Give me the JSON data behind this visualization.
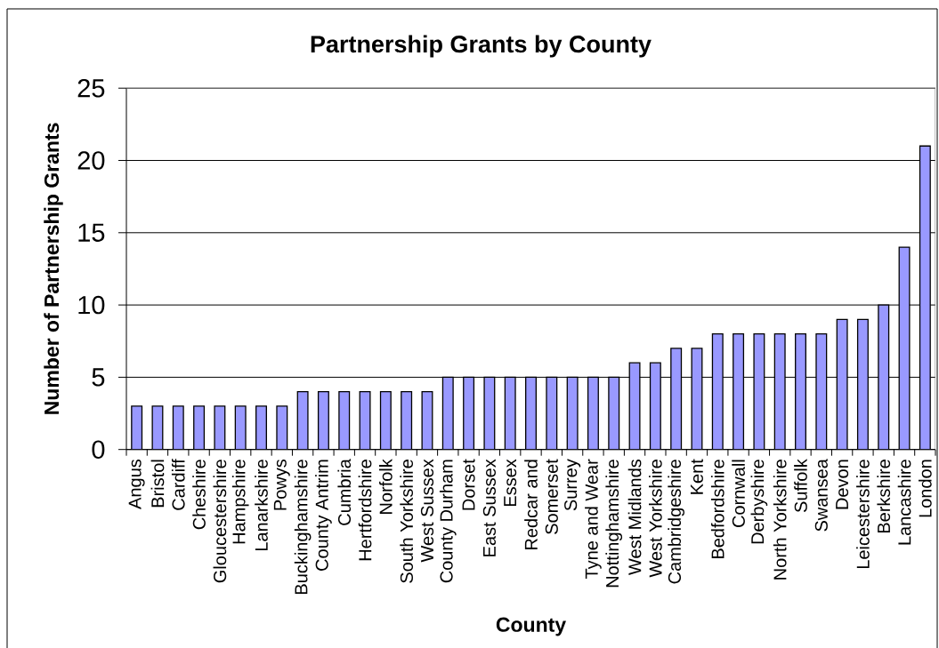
{
  "chart_data": {
    "type": "bar",
    "title": "Partnership Grants by County",
    "xlabel": "County",
    "ylabel": "Number of Partnership Grants",
    "categories": [
      "Angus",
      "Bristol",
      "Cardiff",
      "Cheshire",
      "Gloucestershire",
      "Hampshire",
      "Lanarkshire",
      "Powys",
      "Buckinghamshire",
      "County Antrim",
      "Cumbria",
      "Hertfordshire",
      "Norfolk",
      "South Yorkshire",
      "West Sussex",
      "County Durham",
      "Dorset",
      "East Sussex",
      "Essex",
      "Redcar and",
      "Somerset",
      "Surrey",
      "Tyne and Wear",
      "Nottinghamshire",
      "West Midlands",
      "West Yorkshire",
      "Cambridgeshire",
      "Kent",
      "Bedfordshire",
      "Cornwall",
      "Derbyshire",
      "North Yorkshire",
      "Suffolk",
      "Swansea",
      "Devon",
      "Leicestershire",
      "Berkshire",
      "Lancashire",
      "London"
    ],
    "values": [
      3,
      3,
      3,
      3,
      3,
      3,
      3,
      3,
      4,
      4,
      4,
      4,
      4,
      4,
      4,
      5,
      5,
      5,
      5,
      5,
      5,
      5,
      5,
      5,
      6,
      6,
      7,
      7,
      8,
      8,
      8,
      8,
      8,
      8,
      9,
      9,
      10,
      14,
      21
    ],
    "color": "#9999ff",
    "ylim": [
      0,
      25
    ],
    "yticks": [
      0,
      5,
      10,
      15,
      20,
      25
    ],
    "grid": "y"
  }
}
